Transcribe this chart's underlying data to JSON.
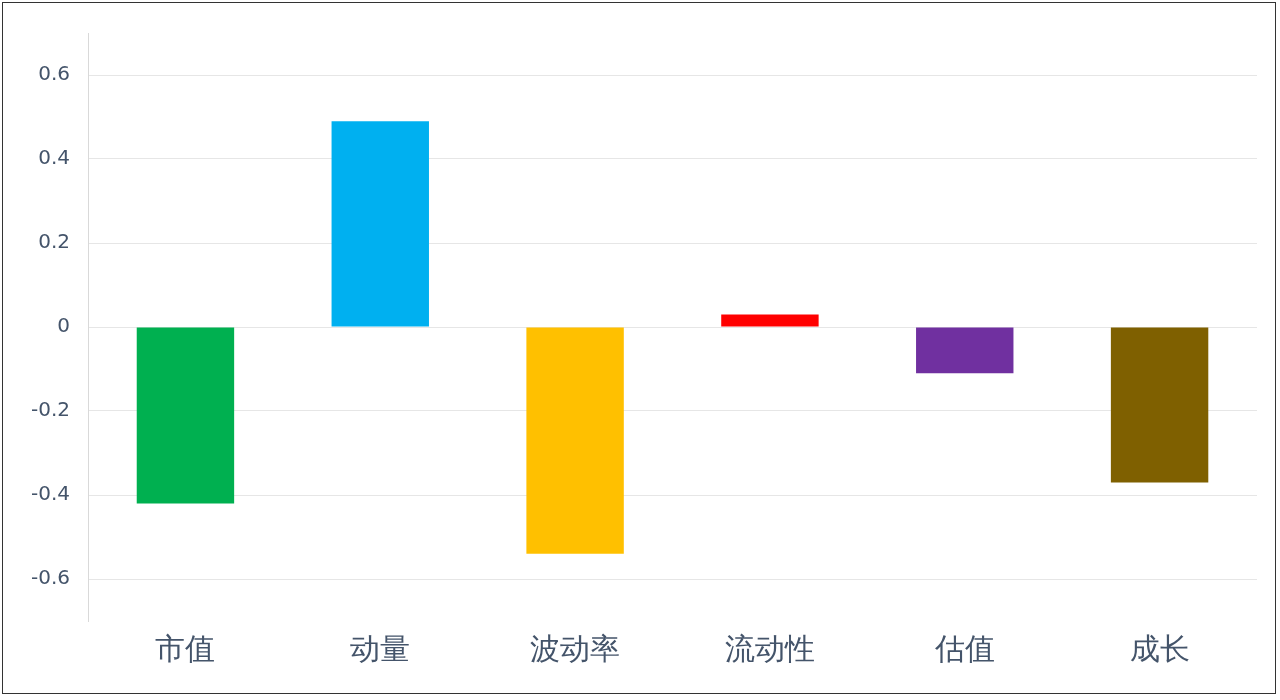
{
  "chart_data": {
    "type": "bar",
    "categories": [
      "市值",
      "动量",
      "波动率",
      "流动性",
      "估值",
      "成长"
    ],
    "values": [
      -0.42,
      0.49,
      -0.54,
      0.03,
      -0.11,
      -0.37
    ],
    "colors": [
      "#00b050",
      "#00b0f0",
      "#ffc000",
      "#ff0000",
      "#7030a0",
      "#7f6000"
    ],
    "ylim": [
      -0.7,
      0.7
    ],
    "yticks": [
      -0.6,
      -0.4,
      -0.2,
      0,
      0.2,
      0.4,
      0.6
    ],
    "grid": "y",
    "legend": false
  }
}
